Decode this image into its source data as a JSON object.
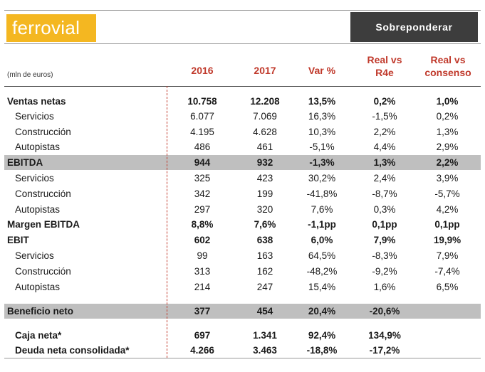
{
  "header": {
    "logo_text": "ferrovial",
    "rating": "Sobreponderar",
    "brand_color": "#f4b721"
  },
  "table": {
    "units": "(mln de euros)",
    "columns": [
      "2016",
      "2017",
      "Var %",
      "Real vs R4e",
      "Real vs consenso"
    ],
    "col4_line1": "Real vs",
    "col4_line2": "R4e",
    "col5_line1": "Real vs",
    "col5_line2": "consenso",
    "rows": [
      {
        "label": "Ventas netas",
        "v": [
          "10.758",
          "12.208",
          "13,5%",
          "0,2%",
          "1,0%"
        ]
      },
      {
        "label": "Servicios",
        "v": [
          "6.077",
          "7.069",
          "16,3%",
          "-1,5%",
          "0,2%"
        ]
      },
      {
        "label": "Construcción",
        "v": [
          "4.195",
          "4.628",
          "10,3%",
          "2,2%",
          "1,3%"
        ]
      },
      {
        "label": "Autopistas",
        "v": [
          "486",
          "461",
          "-5,1%",
          "4,4%",
          "2,9%"
        ]
      },
      {
        "label": "EBITDA",
        "v": [
          "944",
          "932",
          "-1,3%",
          "1,3%",
          "2,2%"
        ]
      },
      {
        "label": "Servicios",
        "v": [
          "325",
          "423",
          "30,2%",
          "2,4%",
          "3,9%"
        ]
      },
      {
        "label": "Construcción",
        "v": [
          "342",
          "199",
          "-41,8%",
          "-8,7%",
          "-5,7%"
        ]
      },
      {
        "label": "Autopistas",
        "v": [
          "297",
          "320",
          "7,6%",
          "0,3%",
          "4,2%"
        ]
      },
      {
        "label": "Margen EBITDA",
        "v": [
          "8,8%",
          "7,6%",
          "-1,1pp",
          "0,1pp",
          "0,1pp"
        ]
      },
      {
        "label": "EBIT",
        "v": [
          "602",
          "638",
          "6,0%",
          "7,9%",
          "19,9%"
        ]
      },
      {
        "label": "Servicios",
        "v": [
          "99",
          "163",
          "64,5%",
          "-8,3%",
          "7,9%"
        ]
      },
      {
        "label": "Construcción",
        "v": [
          "313",
          "162",
          "-48,2%",
          "-9,2%",
          "-7,4%"
        ]
      },
      {
        "label": "Autopistas",
        "v": [
          "214",
          "247",
          "15,4%",
          "1,6%",
          "6,5%"
        ]
      },
      {
        "label": "Beneficio neto",
        "v": [
          "377",
          "454",
          "20,4%",
          "-20,6%",
          ""
        ]
      },
      {
        "label": "Caja neta*",
        "v": [
          "697",
          "1.341",
          "92,4%",
          "134,9%",
          ""
        ]
      },
      {
        "label": "Deuda neta consolidada*",
        "v": [
          "4.266",
          "3.463",
          "-18,8%",
          "-17,2%",
          ""
        ]
      }
    ]
  }
}
